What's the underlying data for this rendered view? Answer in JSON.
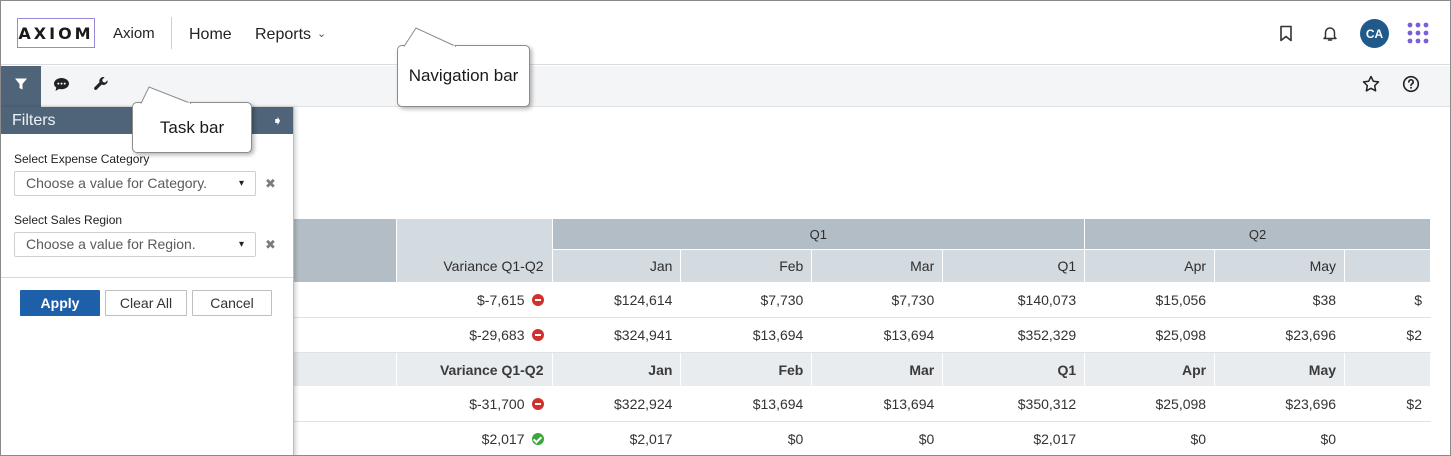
{
  "navbar": {
    "logo_text": "AXIOM",
    "app_name": "Axiom",
    "home": "Home",
    "reports": "Reports",
    "avatar_initials": "CA"
  },
  "icons": {
    "bookmark": "bookmark-icon",
    "bell": "bell-icon",
    "apps": "apps-grid-icon",
    "filter": "filter-icon",
    "comment": "comment-icon",
    "wrench": "wrench-icon",
    "star": "star-icon",
    "help": "help-icon"
  },
  "colors": {
    "accent": "#1d5fa8",
    "panel_header": "#4f6478",
    "avatar": "#1f5a8b",
    "negative": "#d0312d",
    "positive": "#3aa63a",
    "apps_dots": "#7b5fd6"
  },
  "filters": {
    "title": "Filters",
    "pin_glyph": "➧",
    "clear_glyph": "✖",
    "caret_glyph": "▾",
    "category_label": "Select Expense Category",
    "category_placeholder": "Choose a value for Category.",
    "region_label": "Select Sales Region",
    "region_placeholder": "Choose a value for Region.",
    "apply": "Apply",
    "clear_all": "Clear All",
    "cancel": "Cancel"
  },
  "grid": {
    "filter_glyph": "▼",
    "group_headers": [
      "Q1",
      "Q2"
    ],
    "sub_headers": [
      "Variance Q1-Q2",
      "Jan",
      "Feb",
      "Mar",
      "Q1",
      "Apr",
      "May",
      ""
    ],
    "section1_rows": [
      {
        "variance": "$-7,615",
        "status": "neg",
        "values": [
          "$124,614",
          "$7,730",
          "$7,730",
          "$140,073",
          "$15,056",
          "$38",
          "$"
        ]
      },
      {
        "variance": "$-29,683",
        "status": "neg",
        "values": [
          "$324,941",
          "$13,694",
          "$13,694",
          "$352,329",
          "$25,098",
          "$23,696",
          "$2"
        ]
      }
    ],
    "section2_rows": [
      {
        "variance": "$-31,700",
        "status": "neg",
        "values": [
          "$322,924",
          "$13,694",
          "$13,694",
          "$350,312",
          "$25,098",
          "$23,696",
          "$2"
        ]
      },
      {
        "variance": "$2,017",
        "status": "pos",
        "values": [
          "$2,017",
          "$0",
          "$0",
          "$2,017",
          "$0",
          "$0",
          ""
        ]
      }
    ]
  },
  "callouts": {
    "navigation": "Navigation bar",
    "task": "Task bar"
  }
}
